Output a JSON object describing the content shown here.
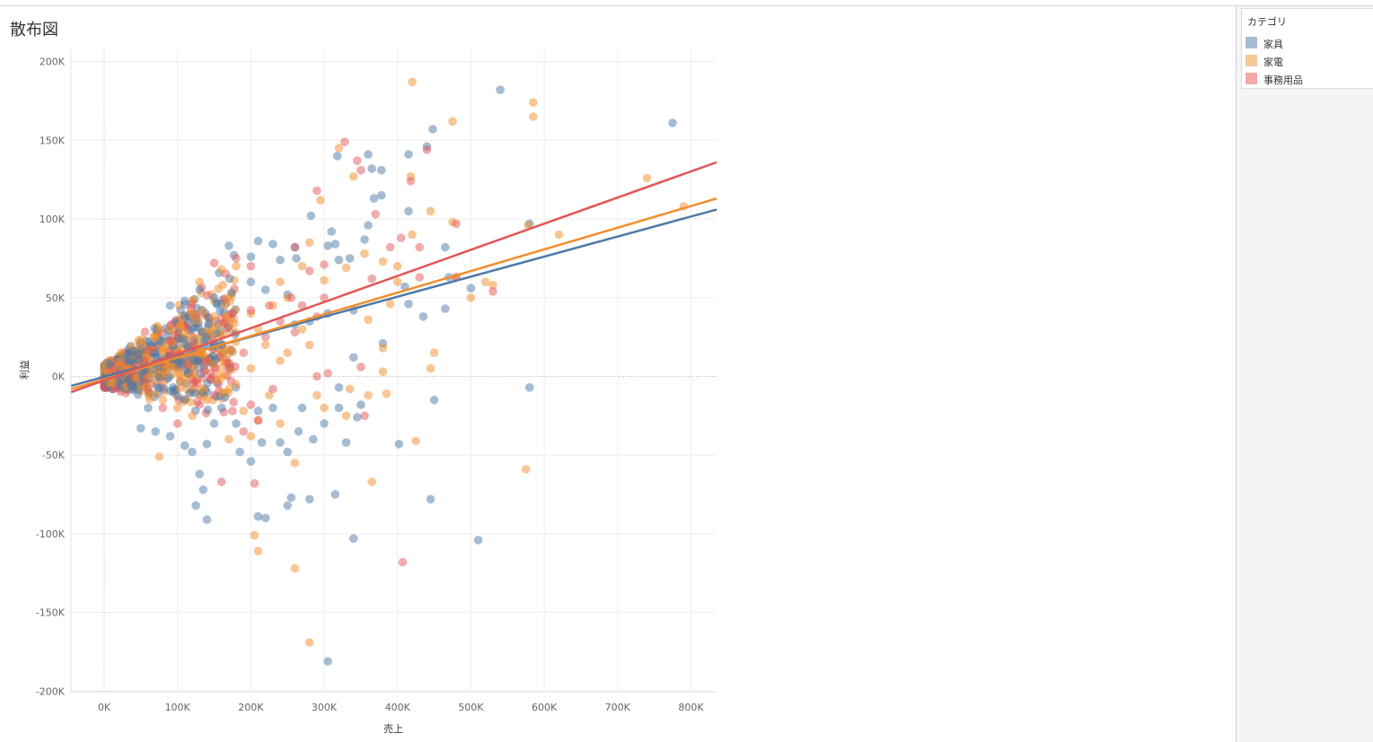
{
  "sheet": {
    "title": "散布図"
  },
  "legend": {
    "title": "カテゴリ",
    "items": [
      {
        "label": "家具",
        "color": "#a8bcd4"
      },
      {
        "label": "家電",
        "color": "#f6c99a"
      },
      {
        "label": "事務用品",
        "color": "#f0aaa8"
      }
    ]
  },
  "chart_data": {
    "type": "scatter",
    "xlabel": "売上",
    "ylabel": "利益",
    "xlim": [
      -45000,
      835000
    ],
    "ylim": [
      -200000,
      205000
    ],
    "x_ticks": [
      0,
      100000,
      200000,
      300000,
      400000,
      500000,
      600000,
      700000,
      800000
    ],
    "x_tick_labels": [
      "0K",
      "100K",
      "200K",
      "300K",
      "400K",
      "500K",
      "600K",
      "700K",
      "800K"
    ],
    "y_ticks": [
      200000,
      150000,
      100000,
      50000,
      0,
      -50000,
      -100000,
      -150000,
      -200000
    ],
    "y_tick_labels": [
      "200K",
      "150K",
      "100K",
      "50K",
      "0K",
      "-50K",
      "-100K",
      "-150K",
      "-200K"
    ],
    "grid": true,
    "legend_position": "right",
    "series": [
      {
        "name": "家具",
        "color": "#4e79a7",
        "trend": [
          [
            -45000,
            -6000
          ],
          [
            835000,
            106000
          ]
        ],
        "points": [
          [
            540000,
            182000
          ],
          [
            775000,
            161000
          ],
          [
            448000,
            157000
          ],
          [
            360000,
            141000
          ],
          [
            318000,
            140000
          ],
          [
            365000,
            132000
          ],
          [
            378000,
            131000
          ],
          [
            415000,
            141000
          ],
          [
            440000,
            146000
          ],
          [
            368000,
            113000
          ],
          [
            378000,
            115000
          ],
          [
            282000,
            102000
          ],
          [
            415000,
            105000
          ],
          [
            580000,
            97000
          ],
          [
            310000,
            92000
          ],
          [
            360000,
            96000
          ],
          [
            355000,
            87000
          ],
          [
            260000,
            82000
          ],
          [
            465000,
            82000
          ],
          [
            305000,
            83000
          ],
          [
            315000,
            84000
          ],
          [
            210000,
            86000
          ],
          [
            230000,
            84000
          ],
          [
            170000,
            83000
          ],
          [
            177000,
            77000
          ],
          [
            200000,
            76000
          ],
          [
            240000,
            74000
          ],
          [
            262000,
            75000
          ],
          [
            320000,
            74000
          ],
          [
            335000,
            75000
          ],
          [
            410000,
            57000
          ],
          [
            500000,
            56000
          ],
          [
            470000,
            63000
          ],
          [
            465000,
            43000
          ],
          [
            435000,
            38000
          ],
          [
            415000,
            46000
          ],
          [
            340000,
            42000
          ],
          [
            305000,
            40000
          ],
          [
            280000,
            35000
          ],
          [
            260000,
            33000
          ],
          [
            380000,
            21000
          ],
          [
            340000,
            12000
          ],
          [
            320000,
            -7000
          ],
          [
            350000,
            -18000
          ],
          [
            345000,
            -26000
          ],
          [
            580000,
            -7000
          ],
          [
            450000,
            -15000
          ],
          [
            402000,
            -43000
          ],
          [
            330000,
            -42000
          ],
          [
            300000,
            -30000
          ],
          [
            285000,
            -40000
          ],
          [
            265000,
            -35000
          ],
          [
            250000,
            -48000
          ],
          [
            215000,
            -42000
          ],
          [
            200000,
            -54000
          ],
          [
            185000,
            -48000
          ],
          [
            140000,
            -43000
          ],
          [
            120000,
            -48000
          ],
          [
            110000,
            -44000
          ],
          [
            130000,
            -62000
          ],
          [
            135000,
            -72000
          ],
          [
            125000,
            -82000
          ],
          [
            140000,
            -91000
          ],
          [
            210000,
            -89000
          ],
          [
            220000,
            -90000
          ],
          [
            250000,
            -82000
          ],
          [
            255000,
            -77000
          ],
          [
            280000,
            -78000
          ],
          [
            315000,
            -75000
          ],
          [
            340000,
            -103000
          ],
          [
            445000,
            -78000
          ],
          [
            510000,
            -104000
          ],
          [
            305000,
            -181000
          ],
          [
            240000,
            -42000
          ],
          [
            180000,
            -30000
          ],
          [
            160000,
            -20000
          ],
          [
            150000,
            -30000
          ],
          [
            210000,
            -22000
          ],
          [
            230000,
            -20000
          ],
          [
            270000,
            -20000
          ],
          [
            320000,
            -20000
          ],
          [
            90000,
            -38000
          ],
          [
            70000,
            -35000
          ],
          [
            50000,
            -33000
          ],
          [
            60000,
            -20000
          ],
          [
            90000,
            45000
          ],
          [
            110000,
            48000
          ],
          [
            130000,
            55000
          ],
          [
            150000,
            50000
          ],
          [
            200000,
            60000
          ],
          [
            220000,
            55000
          ],
          [
            250000,
            52000
          ],
          [
            120000,
            30000
          ],
          [
            140000,
            25000
          ],
          [
            160000,
            20000
          ]
        ]
      },
      {
        "name": "家電",
        "color": "#f28e2b",
        "trend": [
          [
            -45000,
            -8000
          ],
          [
            835000,
            113000
          ]
        ],
        "points": [
          [
            420000,
            187000
          ],
          [
            585000,
            174000
          ],
          [
            475000,
            162000
          ],
          [
            585000,
            165000
          ],
          [
            740000,
            126000
          ],
          [
            790000,
            108000
          ],
          [
            620000,
            90000
          ],
          [
            578000,
            96000
          ],
          [
            475000,
            98000
          ],
          [
            445000,
            105000
          ],
          [
            418000,
            127000
          ],
          [
            340000,
            127000
          ],
          [
            320000,
            145000
          ],
          [
            295000,
            112000
          ],
          [
            420000,
            90000
          ],
          [
            300000,
            61000
          ],
          [
            330000,
            69000
          ],
          [
            355000,
            78000
          ],
          [
            380000,
            73000
          ],
          [
            400000,
            70000
          ],
          [
            520000,
            60000
          ],
          [
            530000,
            58000
          ],
          [
            500000,
            50000
          ],
          [
            480000,
            63000
          ],
          [
            390000,
            46000
          ],
          [
            360000,
            36000
          ],
          [
            380000,
            18000
          ],
          [
            380000,
            3000
          ],
          [
            445000,
            5000
          ],
          [
            450000,
            15000
          ],
          [
            385000,
            -11000
          ],
          [
            335000,
            -8000
          ],
          [
            360000,
            -12000
          ],
          [
            330000,
            -25000
          ],
          [
            300000,
            -20000
          ],
          [
            290000,
            -12000
          ],
          [
            425000,
            -41000
          ],
          [
            575000,
            -59000
          ],
          [
            365000,
            -67000
          ],
          [
            260000,
            -55000
          ],
          [
            205000,
            -101000
          ],
          [
            210000,
            -111000
          ],
          [
            260000,
            -122000
          ],
          [
            280000,
            -169000
          ],
          [
            75000,
            -51000
          ],
          [
            165000,
            45000
          ],
          [
            130000,
            60000
          ],
          [
            120000,
            40000
          ],
          [
            150000,
            38000
          ],
          [
            200000,
            40000
          ],
          [
            230000,
            45000
          ],
          [
            250000,
            50000
          ],
          [
            270000,
            70000
          ],
          [
            280000,
            85000
          ],
          [
            240000,
            60000
          ],
          [
            180000,
            70000
          ],
          [
            160000,
            68000
          ],
          [
            210000,
            30000
          ],
          [
            220000,
            20000
          ],
          [
            250000,
            15000
          ],
          [
            270000,
            30000
          ],
          [
            280000,
            20000
          ],
          [
            240000,
            10000
          ],
          [
            200000,
            5000
          ],
          [
            180000,
            -5000
          ],
          [
            160000,
            -10000
          ],
          [
            140000,
            -15000
          ],
          [
            120000,
            -25000
          ],
          [
            100000,
            -20000
          ],
          [
            80000,
            -15000
          ],
          [
            60000,
            -10000
          ],
          [
            50000,
            20000
          ],
          [
            70000,
            25000
          ],
          [
            90000,
            30000
          ],
          [
            110000,
            28000
          ],
          [
            130000,
            15000
          ],
          [
            150000,
            8000
          ],
          [
            170000,
            -8000
          ],
          [
            190000,
            -22000
          ],
          [
            210000,
            -28000
          ],
          [
            225000,
            -12000
          ],
          [
            240000,
            -30000
          ],
          [
            200000,
            -38000
          ],
          [
            170000,
            -40000
          ],
          [
            400000,
            60000
          ]
        ]
      },
      {
        "name": "事務用品",
        "color": "#e15759",
        "trend": [
          [
            -45000,
            -10000
          ],
          [
            835000,
            136000
          ]
        ],
        "points": [
          [
            328000,
            149000
          ],
          [
            440000,
            144000
          ],
          [
            345000,
            137000
          ],
          [
            350000,
            131000
          ],
          [
            418000,
            124000
          ],
          [
            290000,
            118000
          ],
          [
            370000,
            103000
          ],
          [
            480000,
            97000
          ],
          [
            405000,
            88000
          ],
          [
            390000,
            82000
          ],
          [
            430000,
            82000
          ],
          [
            260000,
            82000
          ],
          [
            300000,
            71000
          ],
          [
            280000,
            67000
          ],
          [
            430000,
            63000
          ],
          [
            480000,
            63000
          ],
          [
            530000,
            54000
          ],
          [
            365000,
            62000
          ],
          [
            300000,
            50000
          ],
          [
            290000,
            38000
          ],
          [
            270000,
            45000
          ],
          [
            255000,
            50000
          ],
          [
            225000,
            45000
          ],
          [
            200000,
            42000
          ],
          [
            175000,
            40000
          ],
          [
            160000,
            37000
          ],
          [
            150000,
            72000
          ],
          [
            180000,
            75000
          ],
          [
            200000,
            70000
          ],
          [
            350000,
            6000
          ],
          [
            305000,
            2000
          ],
          [
            290000,
            0
          ],
          [
            200000,
            -18000
          ],
          [
            210000,
            -28000
          ],
          [
            230000,
            -8000
          ],
          [
            355000,
            -25000
          ],
          [
            407000,
            -118000
          ],
          [
            160000,
            -67000
          ],
          [
            205000,
            -68000
          ],
          [
            100000,
            -30000
          ],
          [
            80000,
            -20000
          ],
          [
            60000,
            -8000
          ],
          [
            40000,
            5000
          ],
          [
            90000,
            15000
          ],
          [
            120000,
            20000
          ],
          [
            140000,
            10000
          ],
          [
            170000,
            5000
          ],
          [
            190000,
            15000
          ],
          [
            220000,
            25000
          ],
          [
            240000,
            35000
          ],
          [
            260000,
            28000
          ],
          [
            150000,
            -12000
          ],
          [
            130000,
            -18000
          ],
          [
            175000,
            -22000
          ],
          [
            190000,
            -35000
          ]
        ]
      }
    ]
  }
}
